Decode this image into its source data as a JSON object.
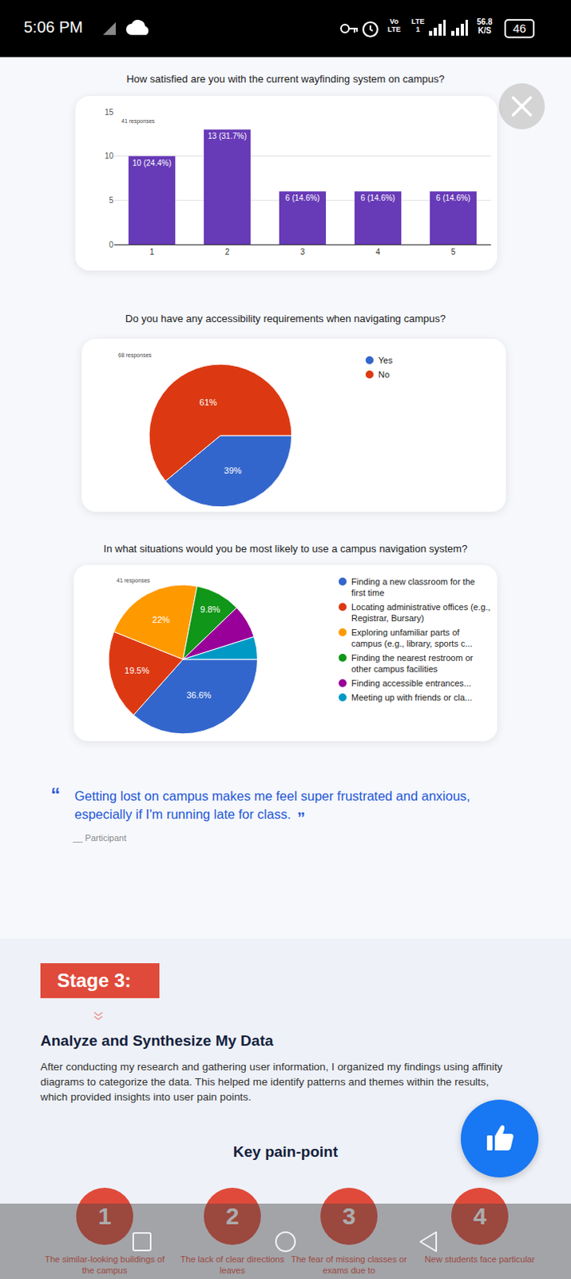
{
  "status_bar": {
    "time": "5:06 PM",
    "network": [
      "Vo LTE",
      "LTE 1"
    ],
    "speed": "56.8 K/S",
    "battery": "46"
  },
  "chart_data": [
    {
      "type": "bar",
      "title": "How satisfied are you with the current wayfinding system on campus?",
      "subtitle": "41 responses",
      "categories": [
        "1",
        "2",
        "3",
        "4",
        "5"
      ],
      "values": [
        10,
        13,
        6,
        6,
        6
      ],
      "value_labels": [
        "10 (24.4%)",
        "13 (31.7%)",
        "6 (14.6%)",
        "6 (14.6%)",
        "6 (14.6%)"
      ],
      "data_labels": true,
      "color": "#673ab7",
      "ylim": [
        0,
        15
      ],
      "yticks": [
        0,
        5,
        10,
        15
      ],
      "grid": true
    },
    {
      "type": "pie",
      "title": "Do you have any accessibility requirements when navigating campus?",
      "subtitle": "68 responses",
      "categories": [
        "Yes",
        "No"
      ],
      "values": [
        39,
        61
      ],
      "value_labels": [
        "39%",
        "61%"
      ],
      "data_labels": true,
      "colors": [
        "#3366cc",
        "#dc3912"
      ],
      "legend": "right"
    },
    {
      "type": "pie",
      "title": "In what situations would you be most likely to use a campus navigation system?",
      "subtitle": "41 responses",
      "categories": [
        "Finding a new classroom for the first time",
        "Locating administrative offices (e.g., Registrar, Bursary)",
        "Exploring unfamiliar parts of campus (e.g., library, sports c...",
        "Finding the nearest restroom or other campus facilities",
        "Finding accessible entrances...",
        "Meeting up with friends or cla..."
      ],
      "values": [
        36.6,
        19.5,
        22,
        9.8,
        7.3,
        4.9
      ],
      "value_labels": [
        "36.6%",
        "19.5%",
        "22%",
        "9.8%",
        null,
        null
      ],
      "data_labels": true,
      "colors": [
        "#3366cc",
        "#dc3912",
        "#ff9900",
        "#109618",
        "#990099",
        "#0099c6"
      ],
      "legend": "right"
    }
  ],
  "quote": {
    "marks": [
      "“",
      "”"
    ],
    "text": "Getting lost on campus makes me feel super frustrated and anxious, especially if I'm running late for class.",
    "attribution": "__ Participant"
  },
  "stage": {
    "label": "Stage 3:",
    "heading": "Analyze and Synthesize My Data",
    "body": "After conducting my research and gathering user information, I organized my findings using affinity diagrams to categorize the data. This helped me identify patterns and themes within the results, which provided insights into user pain points."
  },
  "pain_points": {
    "title": "Key pain-point",
    "items": [
      {
        "number": 1,
        "text": "The similar-looking buildings of the campus"
      },
      {
        "number": 2,
        "text": "The lack of clear directions leaves"
      },
      {
        "number": 3,
        "text": "The fear of missing classes or exams due to"
      },
      {
        "number": 4,
        "text": "New students face particular"
      }
    ]
  }
}
